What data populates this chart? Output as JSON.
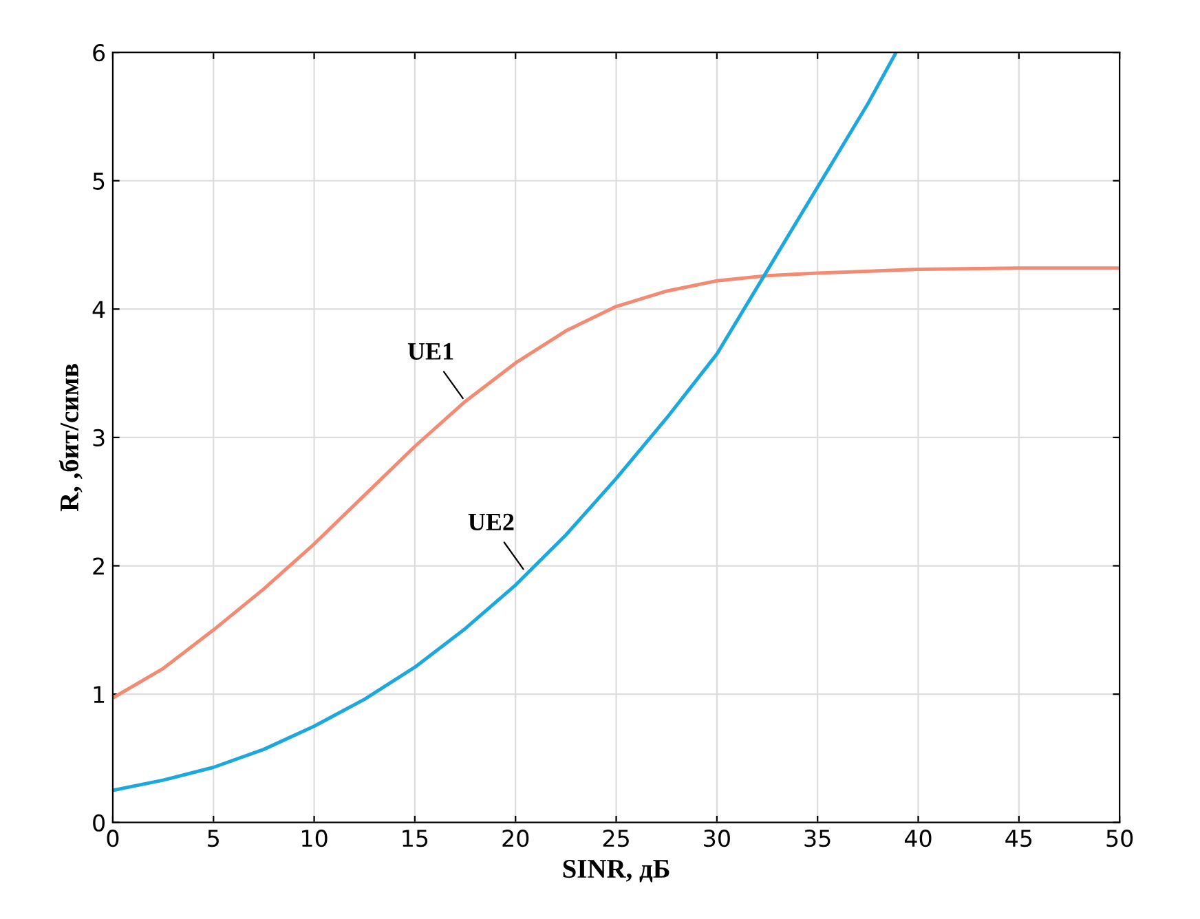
{
  "chart_data": {
    "type": "line",
    "xlabel": "SINR, дБ",
    "ylabel": "R, ,бит/симв",
    "series": [
      {
        "color": "#f28b74",
        "x": [
          0,
          2.5,
          5,
          7.5,
          10,
          12.5,
          15,
          17.5,
          20,
          22.5,
          25,
          27.5,
          30,
          32.5,
          35,
          40,
          45,
          50
        ],
        "values": [
          0.97,
          1.2,
          1.5,
          1.82,
          2.17,
          2.55,
          2.93,
          3.28,
          3.58,
          3.83,
          4.02,
          4.14,
          4.22,
          4.26,
          4.28,
          4.31,
          4.32,
          4.32
        ]
      },
      {
        "color": "#1ca8dd",
        "x": [
          0,
          2.5,
          5,
          7.5,
          10,
          12.5,
          15,
          17.5,
          20,
          22.5,
          25,
          27.5,
          30,
          32.5,
          35,
          37.5,
          38.9
        ],
        "values": [
          0.25,
          0.33,
          0.43,
          0.57,
          0.75,
          0.96,
          1.21,
          1.51,
          1.85,
          2.24,
          2.68,
          3.15,
          3.65,
          4.3,
          4.95,
          5.6,
          6
        ]
      }
    ],
    "annotations": [
      {
        "text": "UE1",
        "x": 17.5,
        "y": 3.28
      },
      {
        "text": "UE2",
        "x": 20.5,
        "y": 1.95
      }
    ],
    "xlim": [
      0,
      50
    ],
    "xticks": [
      0,
      5,
      10,
      15,
      20,
      25,
      30,
      35,
      40,
      45,
      50
    ],
    "ylim": [
      0,
      6
    ],
    "yticks": [
      0,
      1,
      2,
      3,
      4,
      5,
      6
    ],
    "grid": true,
    "marker": "none",
    "line_style": "solid"
  }
}
